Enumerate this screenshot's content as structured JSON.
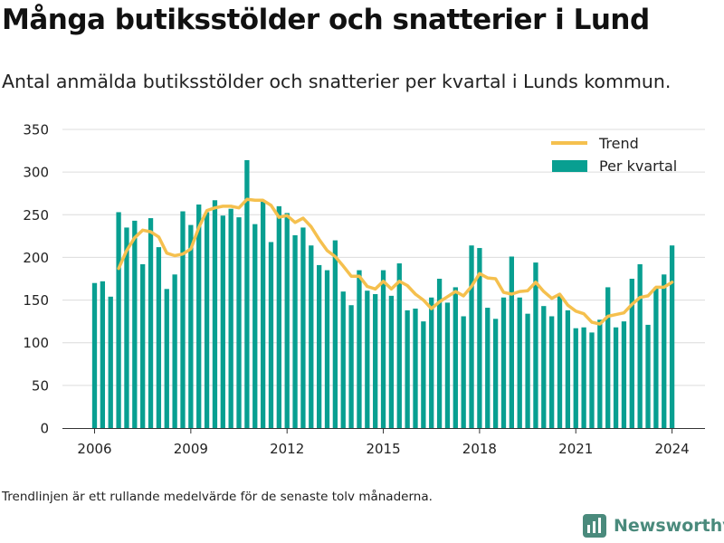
{
  "header": {
    "title": "Många butiksstölder och snatterier i Lund",
    "subtitle": "Antal anmälda butiksstölder och snatterier per kvartal i Lunds kommun."
  },
  "footer": {
    "note": "Trendlinjen är ett rullande medelvärde för de senaste tolv månaderna.",
    "brand": "Newsworthy"
  },
  "colors": {
    "bars": "#089f91",
    "trend": "#f5c04e",
    "brand": "#4a8a7c"
  },
  "chart_data": {
    "type": "bar",
    "ylim": [
      0,
      350
    ],
    "yticks": [
      0,
      50,
      100,
      150,
      200,
      250,
      300,
      350
    ],
    "xticks": [
      "2006",
      "2009",
      "2012",
      "2015",
      "2018",
      "2021",
      "2024"
    ],
    "grid": true,
    "legend_position": "top-right",
    "start": "2006-Q1",
    "series": [
      {
        "name": "Per kvartal",
        "kind": "bar",
        "values": [
          170,
          172,
          154,
          253,
          235,
          243,
          192,
          246,
          212,
          163,
          180,
          254,
          238,
          262,
          253,
          267,
          249,
          257,
          247,
          314,
          239,
          266,
          218,
          260,
          252,
          226,
          235,
          214,
          191,
          185,
          220,
          160,
          144,
          185,
          161,
          157,
          185,
          155,
          193,
          138,
          140,
          125,
          153,
          175,
          147,
          165,
          131,
          214,
          211,
          141,
          128,
          153,
          201,
          153,
          134,
          194,
          143,
          131,
          155,
          138,
          117,
          118,
          112,
          127,
          165,
          118,
          125,
          175,
          192,
          121,
          165,
          180,
          214
        ]
      },
      {
        "name": "Trend",
        "kind": "line",
        "values": [
          null,
          null,
          null,
          187,
          208,
          223,
          232,
          230,
          224,
          205,
          202,
          204,
          210,
          235,
          255,
          258,
          260,
          260,
          258,
          268,
          267,
          267,
          261,
          247,
          249,
          241,
          246,
          236,
          221,
          208,
          201,
          190,
          178,
          178,
          166,
          163,
          172,
          163,
          172,
          167,
          157,
          150,
          140,
          148,
          154,
          160,
          155,
          166,
          181,
          176,
          175,
          159,
          157,
          160,
          161,
          171,
          160,
          152,
          157,
          144,
          137,
          134,
          124,
          122,
          131,
          133,
          135,
          145,
          153,
          155,
          165,
          165,
          171
        ]
      }
    ]
  }
}
